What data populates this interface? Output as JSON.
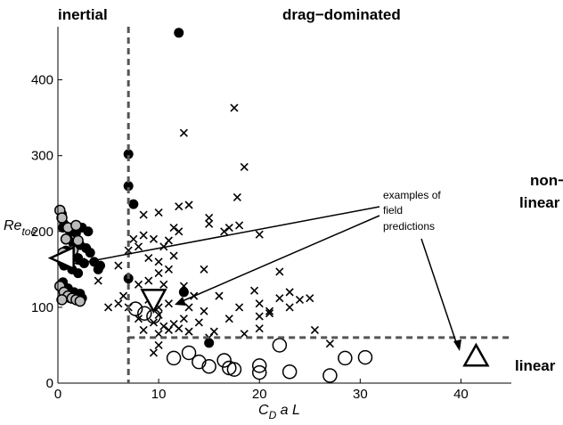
{
  "chart_data": {
    "type": "scatter",
    "xlabel_main": "C",
    "xlabel_sub": "D",
    "xlabel_rest": " a L",
    "ylabel_main": "Re",
    "ylabel_sub": "toe",
    "xlim": [
      0,
      45
    ],
    "ylim": [
      0,
      470
    ],
    "x_ticks": [
      0,
      10,
      20,
      30,
      40
    ],
    "y_ticks": [
      0,
      100,
      200,
      300,
      400
    ],
    "grid": false,
    "thresholds": {
      "x": 7,
      "y": 60
    },
    "region_labels": {
      "inertial": "inertial",
      "drag_dominated": "drag−dominated",
      "nonlinear_line1": "non−",
      "nonlinear_line2": "linear",
      "linear": "linear"
    },
    "annotation": {
      "line1": "examples of",
      "line2": "field",
      "line3": "predictions"
    },
    "series": [
      {
        "marker": "filled-circle",
        "points": [
          [
            12,
            462
          ],
          [
            7,
            302
          ],
          [
            7,
            260
          ],
          [
            7.5,
            236
          ],
          [
            7,
            138
          ],
          [
            12.5,
            120
          ],
          [
            15,
            53
          ],
          [
            0.2,
            228
          ],
          [
            0.4,
            223
          ],
          [
            0.6,
            210
          ],
          [
            1.2,
            200
          ],
          [
            0.5,
            205
          ],
          [
            1.8,
            198
          ],
          [
            2.4,
            205
          ],
          [
            3,
            200
          ],
          [
            1,
            190
          ],
          [
            1.5,
            185
          ],
          [
            0.8,
            175
          ],
          [
            2.2,
            182
          ],
          [
            2.8,
            178
          ],
          [
            1.2,
            170
          ],
          [
            2,
            165
          ],
          [
            3.2,
            172
          ],
          [
            0.4,
            160
          ],
          [
            0.6,
            155
          ],
          [
            1.4,
            150
          ],
          [
            2.6,
            158
          ],
          [
            3.6,
            160
          ],
          [
            4.2,
            155
          ],
          [
            4,
            150
          ],
          [
            2,
            145
          ],
          [
            0.5,
            133
          ],
          [
            1,
            125
          ],
          [
            1.6,
            120
          ],
          [
            2.2,
            118
          ],
          [
            0.8,
            115
          ],
          [
            1.2,
            112
          ],
          [
            2.4,
            112
          ]
        ]
      },
      {
        "marker": "open-circle-gray-fill",
        "points": [
          [
            0.2,
            228
          ],
          [
            0.4,
            218
          ],
          [
            1,
            205
          ],
          [
            1.8,
            208
          ],
          [
            0.8,
            190
          ],
          [
            2,
            188
          ],
          [
            0.5,
            172
          ],
          [
            1.5,
            175
          ],
          [
            0.2,
            128
          ],
          [
            0.6,
            120
          ],
          [
            1,
            115
          ],
          [
            1.4,
            112
          ],
          [
            0.4,
            110
          ],
          [
            1.8,
            110
          ],
          [
            2.2,
            108
          ]
        ]
      },
      {
        "marker": "cross",
        "points": [
          [
            17.5,
            363
          ],
          [
            12.5,
            330
          ],
          [
            18.5,
            285
          ],
          [
            17.8,
            245
          ],
          [
            12,
            233
          ],
          [
            13,
            235
          ],
          [
            15,
            218
          ],
          [
            8.5,
            222
          ],
          [
            10,
            225
          ],
          [
            11.5,
            205
          ],
          [
            12,
            200
          ],
          [
            15,
            210
          ],
          [
            16.5,
            200
          ],
          [
            17,
            205
          ],
          [
            18,
            208
          ],
          [
            20,
            196
          ],
          [
            8.5,
            195
          ],
          [
            7.5,
            190
          ],
          [
            8,
            180
          ],
          [
            9.5,
            190
          ],
          [
            10.5,
            180
          ],
          [
            11,
            188
          ],
          [
            7,
            175
          ],
          [
            9,
            165
          ],
          [
            10,
            160
          ],
          [
            11.5,
            168
          ],
          [
            14.5,
            150
          ],
          [
            11,
            150
          ],
          [
            10,
            145
          ],
          [
            22,
            147
          ],
          [
            8,
            130
          ],
          [
            9,
            135
          ],
          [
            10.5,
            130
          ],
          [
            12.5,
            128
          ],
          [
            19.5,
            122
          ],
          [
            23,
            120
          ],
          [
            13.5,
            115
          ],
          [
            16,
            115
          ],
          [
            22,
            112
          ],
          [
            24,
            110
          ],
          [
            25,
            112
          ],
          [
            6,
            155
          ],
          [
            4,
            135
          ],
          [
            6.5,
            115
          ],
          [
            6,
            105
          ],
          [
            5,
            100
          ],
          [
            7,
            100
          ],
          [
            9,
            110
          ],
          [
            10,
            100
          ],
          [
            11,
            105
          ],
          [
            13,
            100
          ],
          [
            14.5,
            95
          ],
          [
            18,
            100
          ],
          [
            20,
            105
          ],
          [
            21,
            95
          ],
          [
            23,
            100
          ],
          [
            8,
            85
          ],
          [
            9.5,
            80
          ],
          [
            10,
            90
          ],
          [
            10.5,
            75
          ],
          [
            11.5,
            78
          ],
          [
            12.5,
            85
          ],
          [
            14,
            80
          ],
          [
            17,
            85
          ],
          [
            20,
            88
          ],
          [
            21,
            92
          ],
          [
            8.5,
            70
          ],
          [
            10,
            65
          ],
          [
            11,
            70
          ],
          [
            12,
            72
          ],
          [
            13,
            68
          ],
          [
            15.5,
            68
          ],
          [
            18.5,
            65
          ],
          [
            20,
            72
          ],
          [
            25.5,
            70
          ],
          [
            15,
            60
          ],
          [
            10,
            50
          ],
          [
            27,
            52
          ],
          [
            9.5,
            40
          ]
        ]
      },
      {
        "marker": "open-circle",
        "points": [
          [
            7.7,
            98
          ],
          [
            8.6,
            92
          ],
          [
            9.5,
            88
          ],
          [
            22,
            50
          ],
          [
            11.5,
            33
          ],
          [
            14,
            28
          ],
          [
            15,
            22
          ],
          [
            16.5,
            30
          ],
          [
            17,
            20
          ],
          [
            17.5,
            18
          ],
          [
            20,
            23
          ],
          [
            20,
            14
          ],
          [
            23,
            15
          ],
          [
            27,
            10
          ],
          [
            28.5,
            33
          ],
          [
            30.5,
            34
          ],
          [
            13,
            40
          ]
        ]
      },
      {
        "marker": "triangle-left",
        "points": [
          [
            0.5,
            165
          ]
        ]
      },
      {
        "marker": "triangle-down",
        "points": [
          [
            9.5,
            110
          ]
        ]
      },
      {
        "marker": "triangle-up",
        "points": [
          [
            41.5,
            35
          ]
        ]
      }
    ]
  }
}
